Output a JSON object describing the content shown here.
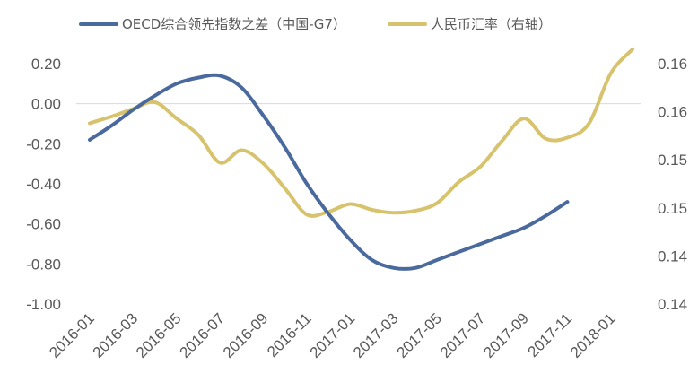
{
  "chart_data": {
    "type": "line",
    "title": "",
    "x": [
      "2016-01",
      "2016-02",
      "2016-03",
      "2016-04",
      "2016-05",
      "2016-06",
      "2016-07",
      "2016-08",
      "2016-09",
      "2016-10",
      "2016-11",
      "2016-12",
      "2017-01",
      "2017-02",
      "2017-03",
      "2017-04",
      "2017-05",
      "2017-06",
      "2017-07",
      "2017-08",
      "2017-09",
      "2017-10",
      "2017-11",
      "2017-12",
      "2018-01",
      "2018-02"
    ],
    "xticks": [
      "2016-01",
      "2016-03",
      "2016-05",
      "2016-07",
      "2016-09",
      "2016-11",
      "2017-01",
      "2017-03",
      "2017-05",
      "2017-07",
      "2017-09",
      "2017-11",
      "2018-01"
    ],
    "y_left": {
      "ticks": [
        "0.20",
        "0.00",
        "-0.20",
        "-0.40",
        "-0.60",
        "-0.80",
        "-1.00"
      ],
      "range": [
        -1.0,
        0.2
      ]
    },
    "y_right": {
      "ticks": [
        "0.16",
        "0.16",
        "0.15",
        "0.15",
        "0.14",
        "0.14"
      ],
      "range": [
        0.1375,
        0.1625
      ]
    },
    "grid": false,
    "legend_position": "top",
    "series": [
      {
        "name": "OECD综合领先指数之差（中国-G7）",
        "axis": "left",
        "color": "#4a6a9e",
        "values": [
          -0.18,
          -0.11,
          -0.03,
          0.04,
          0.1,
          0.13,
          0.14,
          0.08,
          -0.06,
          -0.22,
          -0.4,
          -0.55,
          -0.68,
          -0.78,
          -0.82,
          -0.82,
          -0.78,
          -0.74,
          -0.7,
          -0.66,
          -0.62,
          -0.56,
          -0.49,
          null,
          null,
          null
        ]
      },
      {
        "name": "人民币汇率（右轴）",
        "axis": "right",
        "color": "#d7c36e",
        "values": [
          0.1563,
          0.157,
          0.1578,
          0.1585,
          0.1568,
          0.1551,
          0.1522,
          0.1535,
          0.1521,
          0.1495,
          0.1468,
          0.1471,
          0.1479,
          0.1473,
          0.147,
          0.1472,
          0.148,
          0.1502,
          0.1518,
          0.1545,
          0.1568,
          0.1547,
          0.1548,
          0.1563,
          0.1615,
          0.164
        ]
      }
    ]
  }
}
